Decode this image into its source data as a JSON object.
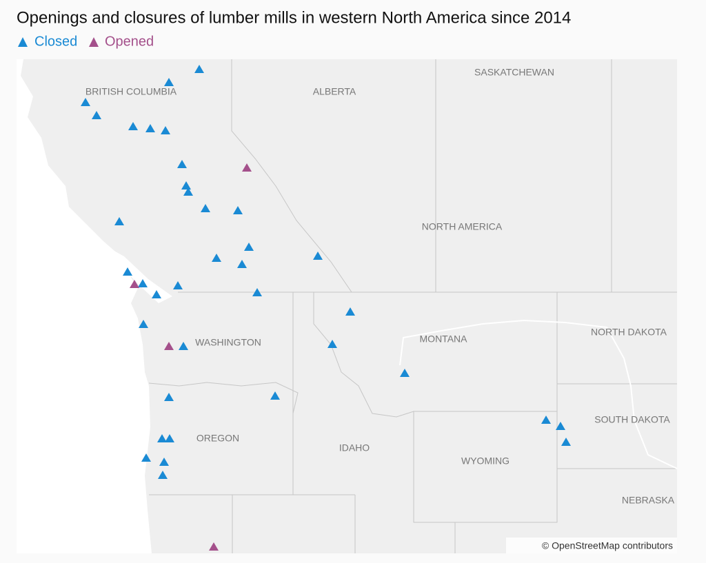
{
  "title": "Openings and closures of lumber mills in western North America since 2014",
  "legend": [
    {
      "label": "Closed",
      "color": "#1a8ad4"
    },
    {
      "label": "Opened",
      "color": "#a4508b"
    }
  ],
  "places": [
    "SASKATCHEWAN",
    "BRITISH COLUMBIA",
    "ALBERTA",
    "NORTH AMERICA",
    "WASHINGTON",
    "MONTANA",
    "NORTH DAKOTA",
    "SOUTH DAKOTA",
    "OREGON",
    "IDAHO",
    "WYOMING",
    "NEBRASKA"
  ],
  "attribution": "© OpenStreetMap contributors"
}
